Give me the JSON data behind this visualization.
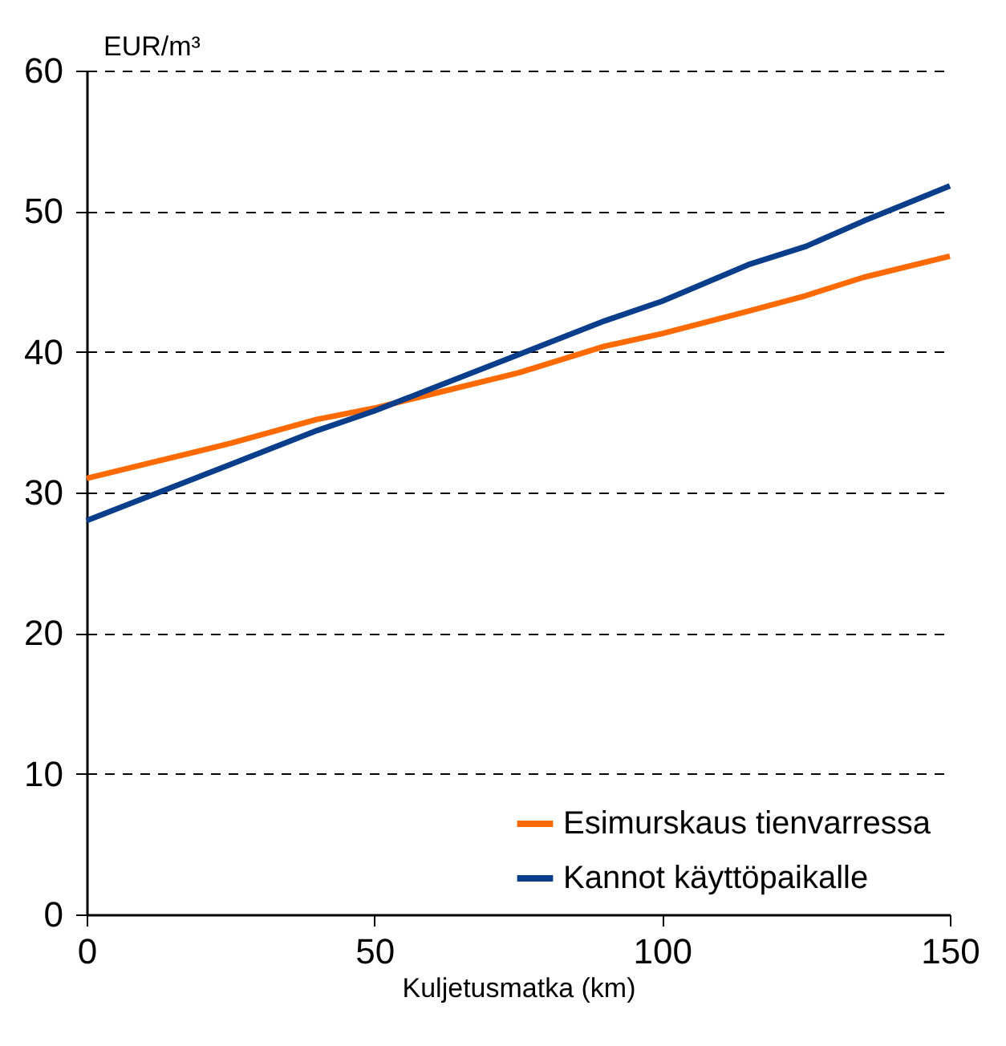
{
  "chart_data": {
    "type": "line",
    "xlabel": "Kuljetusmatka (km)",
    "ylabel": "EUR/m³",
    "x": [
      0,
      10,
      25,
      40,
      50,
      60,
      75,
      90,
      100,
      115,
      125,
      135,
      150
    ],
    "series": [
      {
        "name": "Esimurskaus tienvarressa",
        "color": "#ff6a00",
        "values": [
          31,
          32,
          33.5,
          35.2,
          36,
          37,
          38.5,
          40.4,
          41.3,
          42.9,
          44,
          45.3,
          46.8
        ]
      },
      {
        "name": "Kannot käyttöpaikalle",
        "color": "#0a3d8a",
        "values": [
          28,
          29.6,
          32,
          34.4,
          35.8,
          37.4,
          39.8,
          42.2,
          43.6,
          46.2,
          47.5,
          49.3,
          51.8
        ]
      }
    ],
    "xlim": [
      0,
      150
    ],
    "xticks": [
      0,
      50,
      100,
      150
    ],
    "ylim": [
      0,
      60
    ],
    "yticks": [
      0,
      10,
      20,
      30,
      40,
      50,
      60
    ],
    "grid": "y",
    "legend": "bottom right"
  }
}
